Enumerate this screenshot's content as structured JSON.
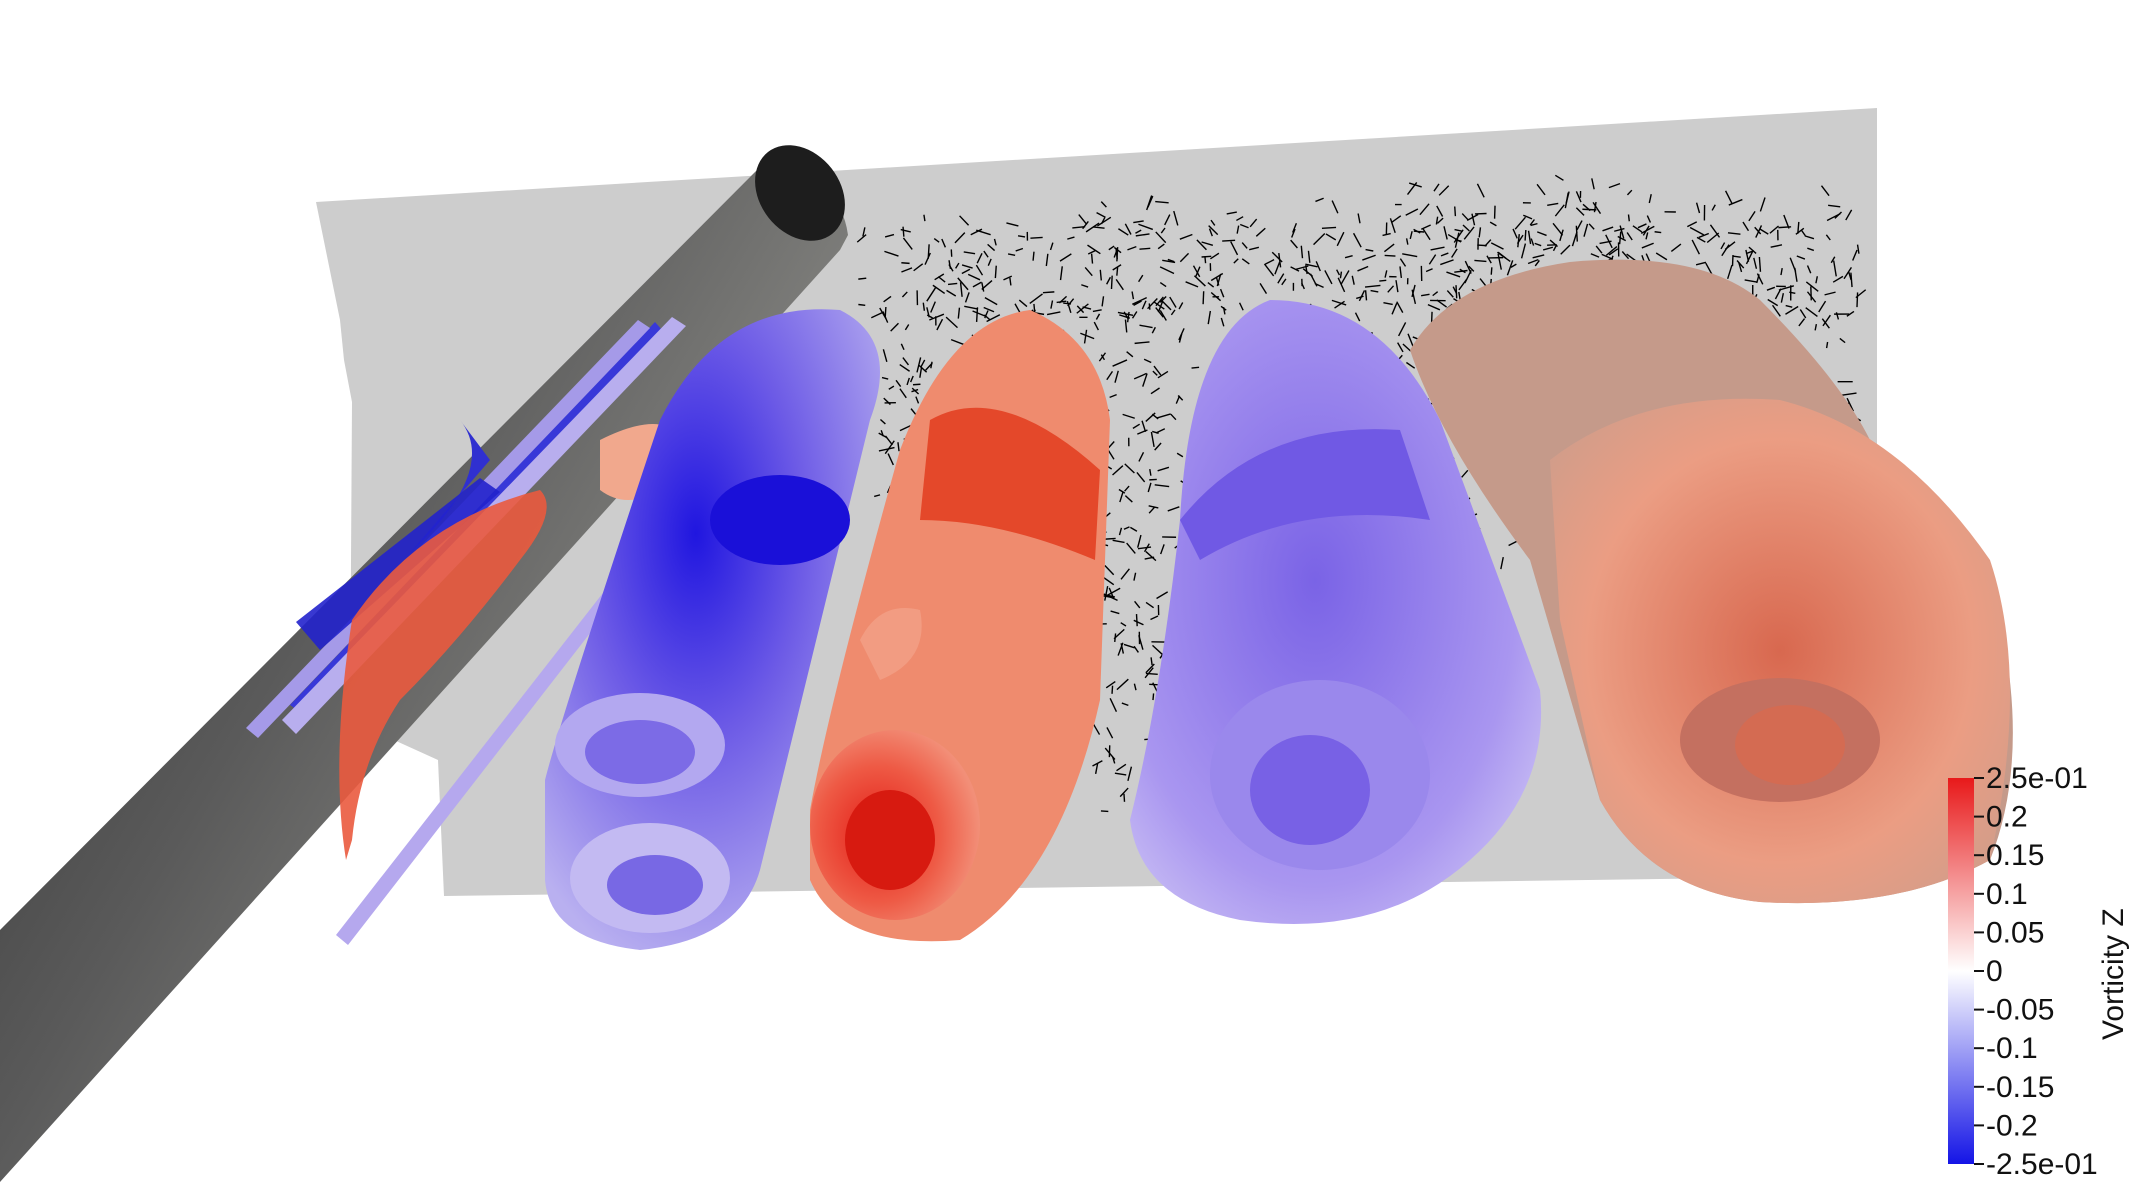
{
  "colorbar": {
    "title": "Vorticity Z",
    "ticks": [
      {
        "label": "2.5e-01",
        "value": 0.25
      },
      {
        "label": "0.2",
        "value": 0.2
      },
      {
        "label": "0.15",
        "value": 0.15
      },
      {
        "label": "0.1",
        "value": 0.1
      },
      {
        "label": "0.05",
        "value": 0.05
      },
      {
        "label": "0",
        "value": 0
      },
      {
        "label": "-0.05",
        "value": -0.05
      },
      {
        "label": "-0.1",
        "value": -0.1
      },
      {
        "label": "-0.15",
        "value": -0.15
      },
      {
        "label": "-0.2",
        "value": -0.2
      },
      {
        "label": "-2.5e-01",
        "value": -0.25
      }
    ],
    "range": [
      -0.25,
      0.25
    ],
    "colors": {
      "max": "#e8191a",
      "mid": "#ffffff",
      "min": "#1414e6"
    }
  },
  "scene": {
    "background": "#ffffff",
    "slice_plane_color": "#cdcdcd",
    "cylinder_color": "#4e4e4e",
    "glyph_color": "#000000"
  }
}
